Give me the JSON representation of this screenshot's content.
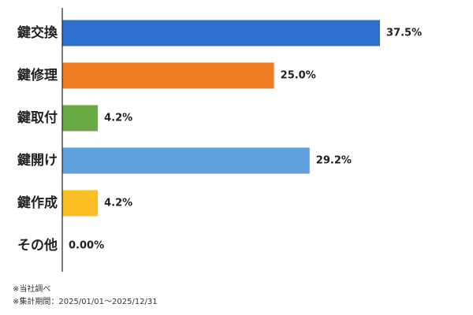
{
  "chart_data": {
    "type": "bar",
    "orientation": "horizontal",
    "categories": [
      "鍵交換",
      "鍵修理",
      "鍵取付",
      "鍵開け",
      "鍵作成",
      "その他"
    ],
    "values": [
      37.5,
      25.0,
      4.2,
      29.2,
      4.2,
      0.0
    ],
    "value_labels": [
      "37.5%",
      "25.0%",
      "4.2%",
      "29.2%",
      "4.2%",
      "0.00%"
    ],
    "colors": [
      "#2e6fce",
      "#f07f22",
      "#6aaa45",
      "#5ea1dd",
      "#fdbf26",
      "#9e9e9e"
    ],
    "xlim": [
      0,
      50
    ],
    "grid": false,
    "legend": "none"
  },
  "footnotes": {
    "source": "※当社調べ",
    "period": "※集計期間：2025/01/01～2025/12/31"
  }
}
